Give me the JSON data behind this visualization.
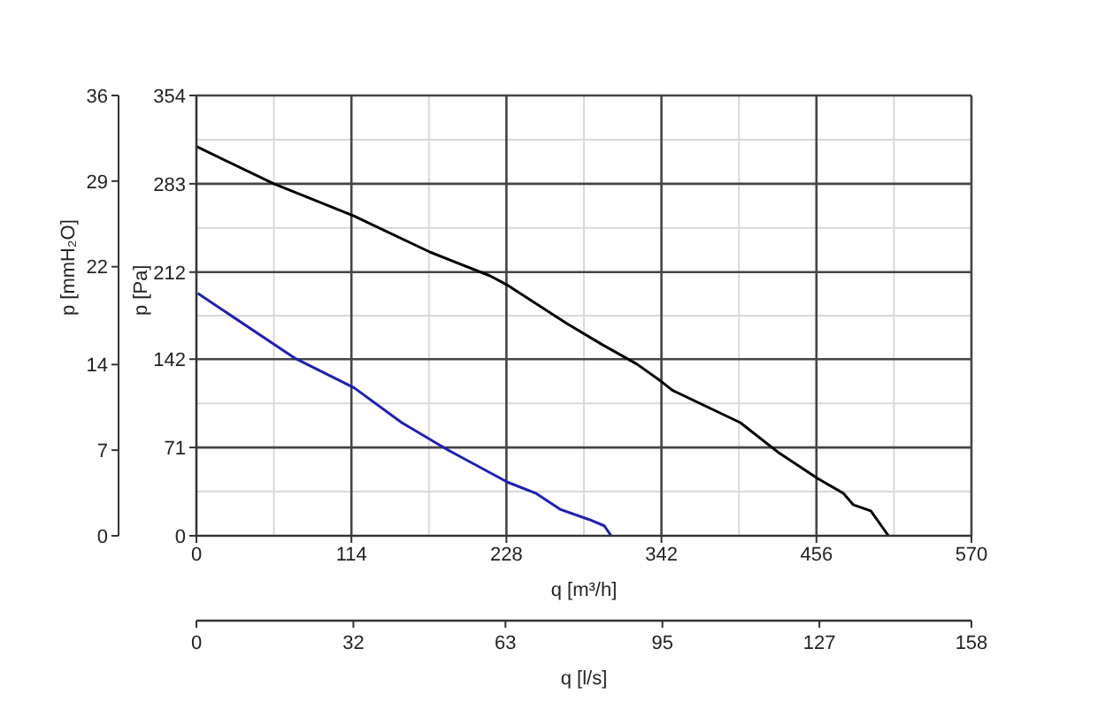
{
  "chart_data": {
    "type": "line",
    "xlabel": "q [m³/h]",
    "ylabel": "p [Pa]",
    "y2label": "p [mmH₂O]",
    "x2label": "q [l/s]",
    "xlim": [
      0,
      570
    ],
    "xticks": [
      0,
      114,
      228,
      342,
      456,
      570
    ],
    "ylim": [
      0,
      354
    ],
    "yticks": [
      0,
      71,
      142,
      212,
      283,
      354
    ],
    "y2lim": [
      0,
      36
    ],
    "y2ticks": [
      0,
      7,
      14,
      22,
      29,
      36
    ],
    "x2lim": [
      0,
      158
    ],
    "x2ticks": [
      0,
      32,
      63,
      95,
      127,
      158
    ],
    "grid": true,
    "marker": "none",
    "line_style": "solid",
    "series": [
      {
        "color": "#000000",
        "x": [
          0,
          57,
          116,
          172,
          216,
          228,
          272,
          298,
          324,
          342,
          350,
          400,
          428,
          457,
          476,
          483,
          496,
          509
        ],
        "values": [
          313,
          283,
          257,
          228,
          209,
          202,
          171,
          154,
          138,
          124,
          117,
          91,
          67,
          46,
          34,
          25,
          20,
          0
        ]
      },
      {
        "color": "#1f1fb4",
        "x": [
          1,
          72,
          116,
          151,
          185,
          229,
          250,
          268,
          289,
          300,
          305
        ],
        "values": [
          195,
          143,
          119,
          91,
          69,
          43,
          34,
          21,
          13,
          8,
          0
        ]
      }
    ]
  }
}
